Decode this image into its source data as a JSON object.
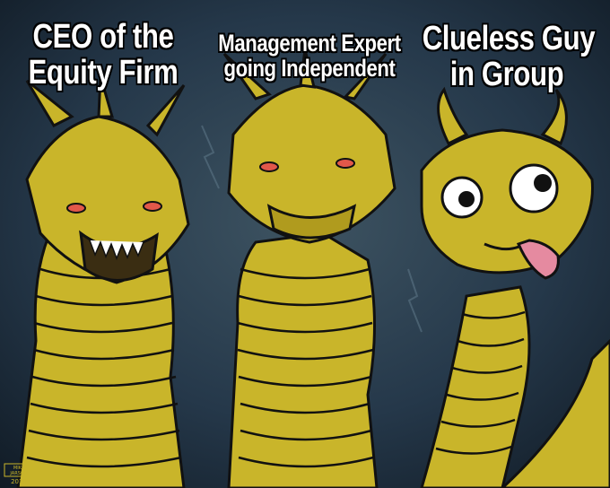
{
  "meme": {
    "template": "three-headed dragon",
    "captions": {
      "left": {
        "lines": [
          "CEO of the",
          "Equity Firm"
        ]
      },
      "middle": {
        "lines": [
          "Management Expert",
          "going Independent"
        ]
      },
      "right": {
        "lines": [
          "Clueless Guy",
          "in Group"
        ]
      }
    },
    "signature": {
      "line1": "MIKE",
      "line2": "JARSON",
      "year": "2019"
    }
  },
  "colors": {
    "background": "#1b2a36",
    "dragon_body": "#c9b52a",
    "dragon_shadow": "#8a7a12",
    "outline": "#111111",
    "eye_red": "#e2584a",
    "tongue": "#e58aa0",
    "caption_text": "#ffffff"
  }
}
